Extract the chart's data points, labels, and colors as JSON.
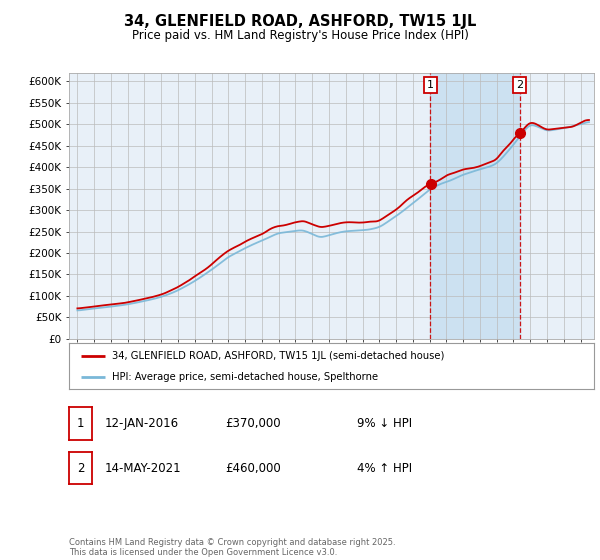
{
  "title": "34, GLENFIELD ROAD, ASHFORD, TW15 1JL",
  "subtitle": "Price paid vs. HM Land Registry's House Price Index (HPI)",
  "legend_line1": "34, GLENFIELD ROAD, ASHFORD, TW15 1JL (semi-detached house)",
  "legend_line2": "HPI: Average price, semi-detached house, Spelthorne",
  "annotation1_date": "12-JAN-2016",
  "annotation1_price": "£370,000",
  "annotation1_note": "9% ↓ HPI",
  "annotation2_date": "14-MAY-2021",
  "annotation2_price": "£460,000",
  "annotation2_note": "4% ↑ HPI",
  "hpi_color": "#7ab8d8",
  "price_color": "#cc0000",
  "background_color": "#ffffff",
  "plot_bg_color": "#e8f0f8",
  "grid_color": "#bbbbbb",
  "shade_color": "#c8dff0",
  "ylim": [
    0,
    620000
  ],
  "event1_year": 2016.04,
  "event1_price": 370000,
  "event2_year": 2021.37,
  "event2_price": 460000,
  "footnote": "Contains HM Land Registry data © Crown copyright and database right 2025.\nThis data is licensed under the Open Government Licence v3.0."
}
